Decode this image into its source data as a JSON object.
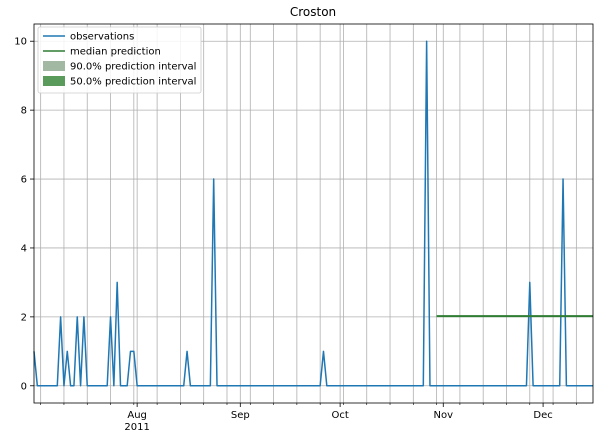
{
  "chart_data": {
    "type": "line",
    "title": "Croston",
    "xlabel": "",
    "ylabel": "",
    "xlim": [
      "2011-07-01",
      "2011-12-16"
    ],
    "ylim": [
      -0.5,
      10.5
    ],
    "grid": true,
    "legend_position": "top-left",
    "y_ticks": [
      0,
      2,
      4,
      6,
      8,
      10
    ],
    "x_major_ticks": [
      {
        "date": "2011-08-01",
        "label": "Aug",
        "sublabel": "2011"
      },
      {
        "date": "2011-09-01",
        "label": "Sep",
        "sublabel": ""
      },
      {
        "date": "2011-10-01",
        "label": "Oct",
        "sublabel": ""
      },
      {
        "date": "2011-11-01",
        "label": "Nov",
        "sublabel": ""
      },
      {
        "date": "2011-12-01",
        "label": "Dec",
        "sublabel": ""
      }
    ],
    "x_minor_ticks": [
      "2011-07-03",
      "2011-07-10",
      "2011-07-17",
      "2011-07-24",
      "2011-07-31",
      "2011-08-07",
      "2011-08-14",
      "2011-08-21",
      "2011-08-28",
      "2011-09-04",
      "2011-09-11",
      "2011-09-18",
      "2011-09-25",
      "2011-10-02",
      "2011-10-09",
      "2011-10-16",
      "2011-10-23",
      "2011-10-30",
      "2011-11-06",
      "2011-11-13",
      "2011-11-20",
      "2011-11-27",
      "2011-12-04",
      "2011-12-11"
    ],
    "series": [
      {
        "name": "observations",
        "color": "#1f77b4",
        "points": [
          [
            "2011-07-01",
            1
          ],
          [
            "2011-07-02",
            0
          ],
          [
            "2011-07-08",
            0
          ],
          [
            "2011-07-09",
            2
          ],
          [
            "2011-07-10",
            0
          ],
          [
            "2011-07-11",
            1
          ],
          [
            "2011-07-12",
            0
          ],
          [
            "2011-07-13",
            0
          ],
          [
            "2011-07-14",
            2
          ],
          [
            "2011-07-15",
            0
          ],
          [
            "2011-07-16",
            2
          ],
          [
            "2011-07-17",
            0
          ],
          [
            "2011-07-23",
            0
          ],
          [
            "2011-07-24",
            2
          ],
          [
            "2011-07-25",
            0
          ],
          [
            "2011-07-26",
            3
          ],
          [
            "2011-07-27",
            0
          ],
          [
            "2011-07-29",
            0
          ],
          [
            "2011-07-30",
            1
          ],
          [
            "2011-07-31",
            1
          ],
          [
            "2011-08-01",
            0
          ],
          [
            "2011-08-15",
            0
          ],
          [
            "2011-08-16",
            1
          ],
          [
            "2011-08-17",
            0
          ],
          [
            "2011-08-23",
            0
          ],
          [
            "2011-08-24",
            6
          ],
          [
            "2011-08-25",
            0
          ],
          [
            "2011-09-25",
            0
          ],
          [
            "2011-09-26",
            1
          ],
          [
            "2011-09-27",
            0
          ],
          [
            "2011-10-26",
            0
          ],
          [
            "2011-10-27",
            10
          ],
          [
            "2011-10-28",
            0
          ],
          [
            "2011-11-26",
            0
          ],
          [
            "2011-11-27",
            3
          ],
          [
            "2011-11-28",
            0
          ],
          [
            "2011-12-06",
            0
          ],
          [
            "2011-12-07",
            6
          ],
          [
            "2011-12-08",
            0
          ],
          [
            "2011-12-16",
            0
          ]
        ]
      },
      {
        "name": "median prediction",
        "color": "#2e7d32",
        "points": [
          [
            "2011-10-30",
            2.02
          ],
          [
            "2011-12-16",
            2.02
          ]
        ]
      }
    ],
    "intervals": [
      {
        "name": "90.0% prediction interval",
        "color": "#a3b8a3",
        "x": [
          "2011-10-30",
          "2011-12-16"
        ],
        "lower": 2.0,
        "upper": 2.04
      },
      {
        "name": "50.0% prediction interval",
        "color": "#5a9a5a",
        "x": [
          "2011-10-30",
          "2011-12-16"
        ],
        "lower": 2.0,
        "upper": 2.04
      }
    ]
  },
  "legend": {
    "items": [
      {
        "label": "observations",
        "kind": "line",
        "color": "#1f77b4"
      },
      {
        "label": "median prediction",
        "kind": "line",
        "color": "#2e7d32"
      },
      {
        "label": "90.0% prediction interval",
        "kind": "patch",
        "color": "#a3b8a3"
      },
      {
        "label": "50.0% prediction interval",
        "kind": "patch",
        "color": "#5a9a5a"
      }
    ]
  }
}
